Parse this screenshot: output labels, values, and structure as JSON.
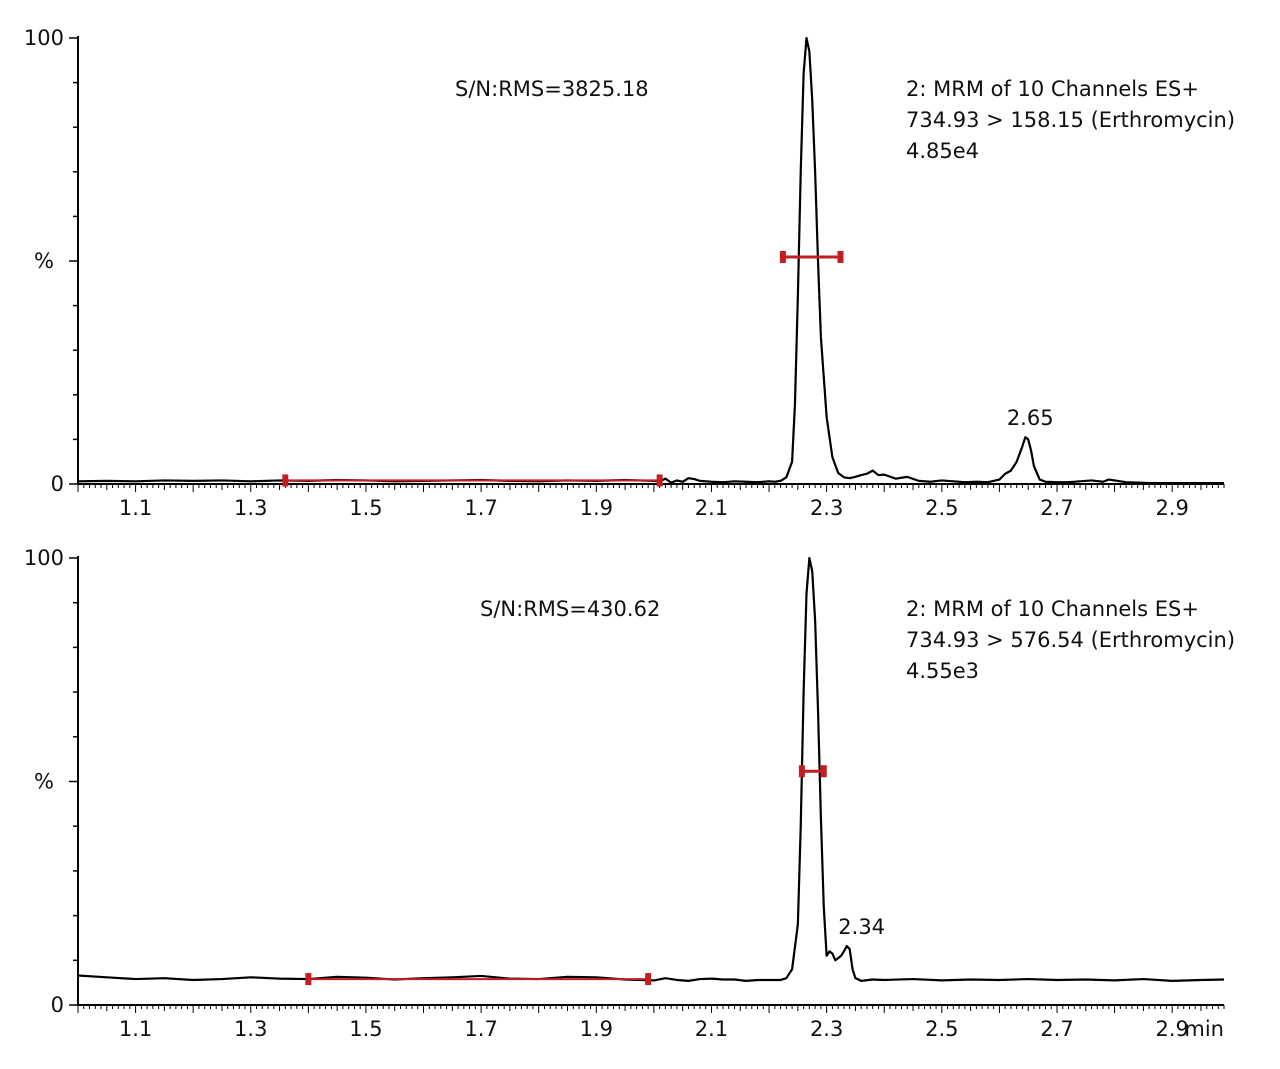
{
  "chart_data": [
    {
      "type": "line",
      "title": "",
      "xlabel": "",
      "ylabel": "%",
      "xlim": [
        1.0,
        2.99
      ],
      "ylim": [
        0,
        100
      ],
      "y_ticks": [
        {
          "value": 0,
          "label": "0"
        },
        {
          "value": 50,
          "label": "%"
        },
        {
          "value": 100,
          "label": "100"
        }
      ],
      "x_ticks": [
        "1.1",
        "1.3",
        "1.5",
        "1.7",
        "1.9",
        "2.1",
        "2.3",
        "2.5",
        "2.7",
        "2.9"
      ],
      "x_unit": "",
      "sn_text": "S/N:RMS=3825.18",
      "info_lines": [
        "2: MRM of 10 Channels ES+",
        "734.93 > 158.15 (Erthromycin)",
        "4.85e4"
      ],
      "peak_label": {
        "text": "2.65",
        "x": 2.65,
        "y": 10.5
      },
      "signal_width_marker": {
        "x1": 2.224,
        "x2": 2.324,
        "y": 50.9
      },
      "noise_window": {
        "x1": 1.36,
        "x2": 2.01,
        "y": 0.8
      },
      "series": [
        {
          "x": [
            1.0,
            1.05,
            1.1,
            1.15,
            1.2,
            1.25,
            1.3,
            1.35,
            1.4,
            1.45,
            1.5,
            1.55,
            1.6,
            1.65,
            1.7,
            1.75,
            1.8,
            1.85,
            1.9,
            1.95,
            2.0,
            2.01,
            2.02,
            2.03,
            2.04,
            2.05,
            2.06,
            2.07,
            2.08,
            2.1,
            2.12,
            2.14,
            2.16,
            2.18,
            2.2,
            2.21,
            2.22,
            2.23,
            2.24,
            2.245,
            2.25,
            2.255,
            2.26,
            2.265,
            2.27,
            2.275,
            2.28,
            2.285,
            2.29,
            2.3,
            2.31,
            2.32,
            2.33,
            2.34,
            2.35,
            2.36,
            2.37,
            2.38,
            2.39,
            2.4,
            2.42,
            2.44,
            2.46,
            2.48,
            2.5,
            2.52,
            2.54,
            2.56,
            2.58,
            2.6,
            2.61,
            2.62,
            2.63,
            2.64,
            2.645,
            2.65,
            2.655,
            2.66,
            2.67,
            2.68,
            2.7,
            2.72,
            2.74,
            2.76,
            2.78,
            2.79,
            2.8,
            2.82,
            2.84,
            2.86,
            2.88,
            2.9,
            2.95,
            2.99
          ],
          "y": [
            0.6,
            0.7,
            0.6,
            0.8,
            0.7,
            0.8,
            0.6,
            0.8,
            0.7,
            0.9,
            0.8,
            0.6,
            0.7,
            0.8,
            0.9,
            0.7,
            0.6,
            0.8,
            0.7,
            0.9,
            0.7,
            0.6,
            1.2,
            0.3,
            0.8,
            0.5,
            1.3,
            1.1,
            0.7,
            0.5,
            0.4,
            0.6,
            0.5,
            0.4,
            0.6,
            0.5,
            0.7,
            1.5,
            5,
            18,
            42,
            70,
            92,
            100,
            97,
            86,
            70,
            50,
            33,
            15,
            6,
            2.5,
            1.5,
            1.3,
            1.6,
            2.0,
            2.3,
            3.0,
            2.0,
            2.1,
            1.2,
            1.6,
            0.7,
            0.5,
            0.8,
            0.6,
            0.4,
            0.5,
            0.4,
            1.0,
            2.3,
            3.0,
            5.0,
            8.5,
            10.5,
            10.0,
            7.5,
            4.0,
            1.0,
            0.5,
            0.4,
            0.4,
            0.6,
            0.8,
            0.5,
            1.0,
            0.8,
            0.4,
            0.3,
            0.2,
            0.2,
            0.2,
            0.2,
            0.2
          ]
        }
      ]
    },
    {
      "type": "line",
      "title": "",
      "xlabel": "",
      "ylabel": "%",
      "xlim": [
        1.0,
        2.99
      ],
      "ylim": [
        0,
        100
      ],
      "y_ticks": [
        {
          "value": 0,
          "label": "0"
        },
        {
          "value": 50,
          "label": "%"
        },
        {
          "value": 100,
          "label": "100"
        }
      ],
      "x_ticks": [
        "1.1",
        "1.3",
        "1.5",
        "1.7",
        "1.9",
        "2.1",
        "2.3",
        "2.5",
        "2.7",
        "2.9"
      ],
      "x_unit": "min",
      "sn_text": "S/N:RMS=430.62",
      "info_lines": [
        "2: MRM of 10 Channels ES+",
        "734.93 > 576.54 (Erthromycin)",
        "4.55e3"
      ],
      "peak_label": {
        "text": "2.34",
        "x": 2.34,
        "y": 13.2
      },
      "signal_width_marker": {
        "x1": 2.257,
        "x2": 2.295,
        "y": 52.3
      },
      "noise_window": {
        "x1": 1.4,
        "x2": 1.99,
        "y": 5.8
      },
      "series": [
        {
          "x": [
            1.0,
            1.05,
            1.1,
            1.15,
            1.2,
            1.25,
            1.3,
            1.35,
            1.4,
            1.45,
            1.5,
            1.55,
            1.6,
            1.65,
            1.7,
            1.75,
            1.8,
            1.85,
            1.9,
            1.95,
            2.0,
            2.02,
            2.04,
            2.06,
            2.08,
            2.1,
            2.12,
            2.14,
            2.16,
            2.18,
            2.2,
            2.22,
            2.23,
            2.24,
            2.25,
            2.255,
            2.26,
            2.265,
            2.27,
            2.275,
            2.28,
            2.285,
            2.29,
            2.295,
            2.3,
            2.305,
            2.31,
            2.315,
            2.32,
            2.325,
            2.33,
            2.335,
            2.34,
            2.345,
            2.35,
            2.36,
            2.38,
            2.4,
            2.45,
            2.5,
            2.55,
            2.6,
            2.65,
            2.7,
            2.75,
            2.8,
            2.85,
            2.9,
            2.95,
            2.99
          ],
          "y": [
            6.6,
            6.2,
            5.8,
            6.0,
            5.6,
            5.8,
            6.2,
            5.9,
            5.8,
            6.3,
            6.1,
            5.7,
            6.0,
            6.2,
            6.5,
            5.9,
            5.8,
            6.3,
            6.2,
            5.7,
            5.5,
            6.0,
            5.6,
            5.4,
            5.8,
            5.9,
            5.7,
            5.7,
            5.4,
            5.6,
            5.6,
            5.6,
            6.0,
            8.0,
            18,
            40,
            70,
            92,
            100,
            97,
            86,
            66,
            42,
            22,
            11,
            12,
            11.5,
            10,
            10.5,
            11,
            12,
            13.2,
            12.5,
            8,
            6.0,
            5.4,
            5.7,
            5.6,
            5.8,
            5.5,
            5.7,
            5.6,
            5.8,
            5.6,
            5.7,
            5.5,
            5.8,
            5.4,
            5.6,
            5.7
          ]
        }
      ]
    }
  ]
}
